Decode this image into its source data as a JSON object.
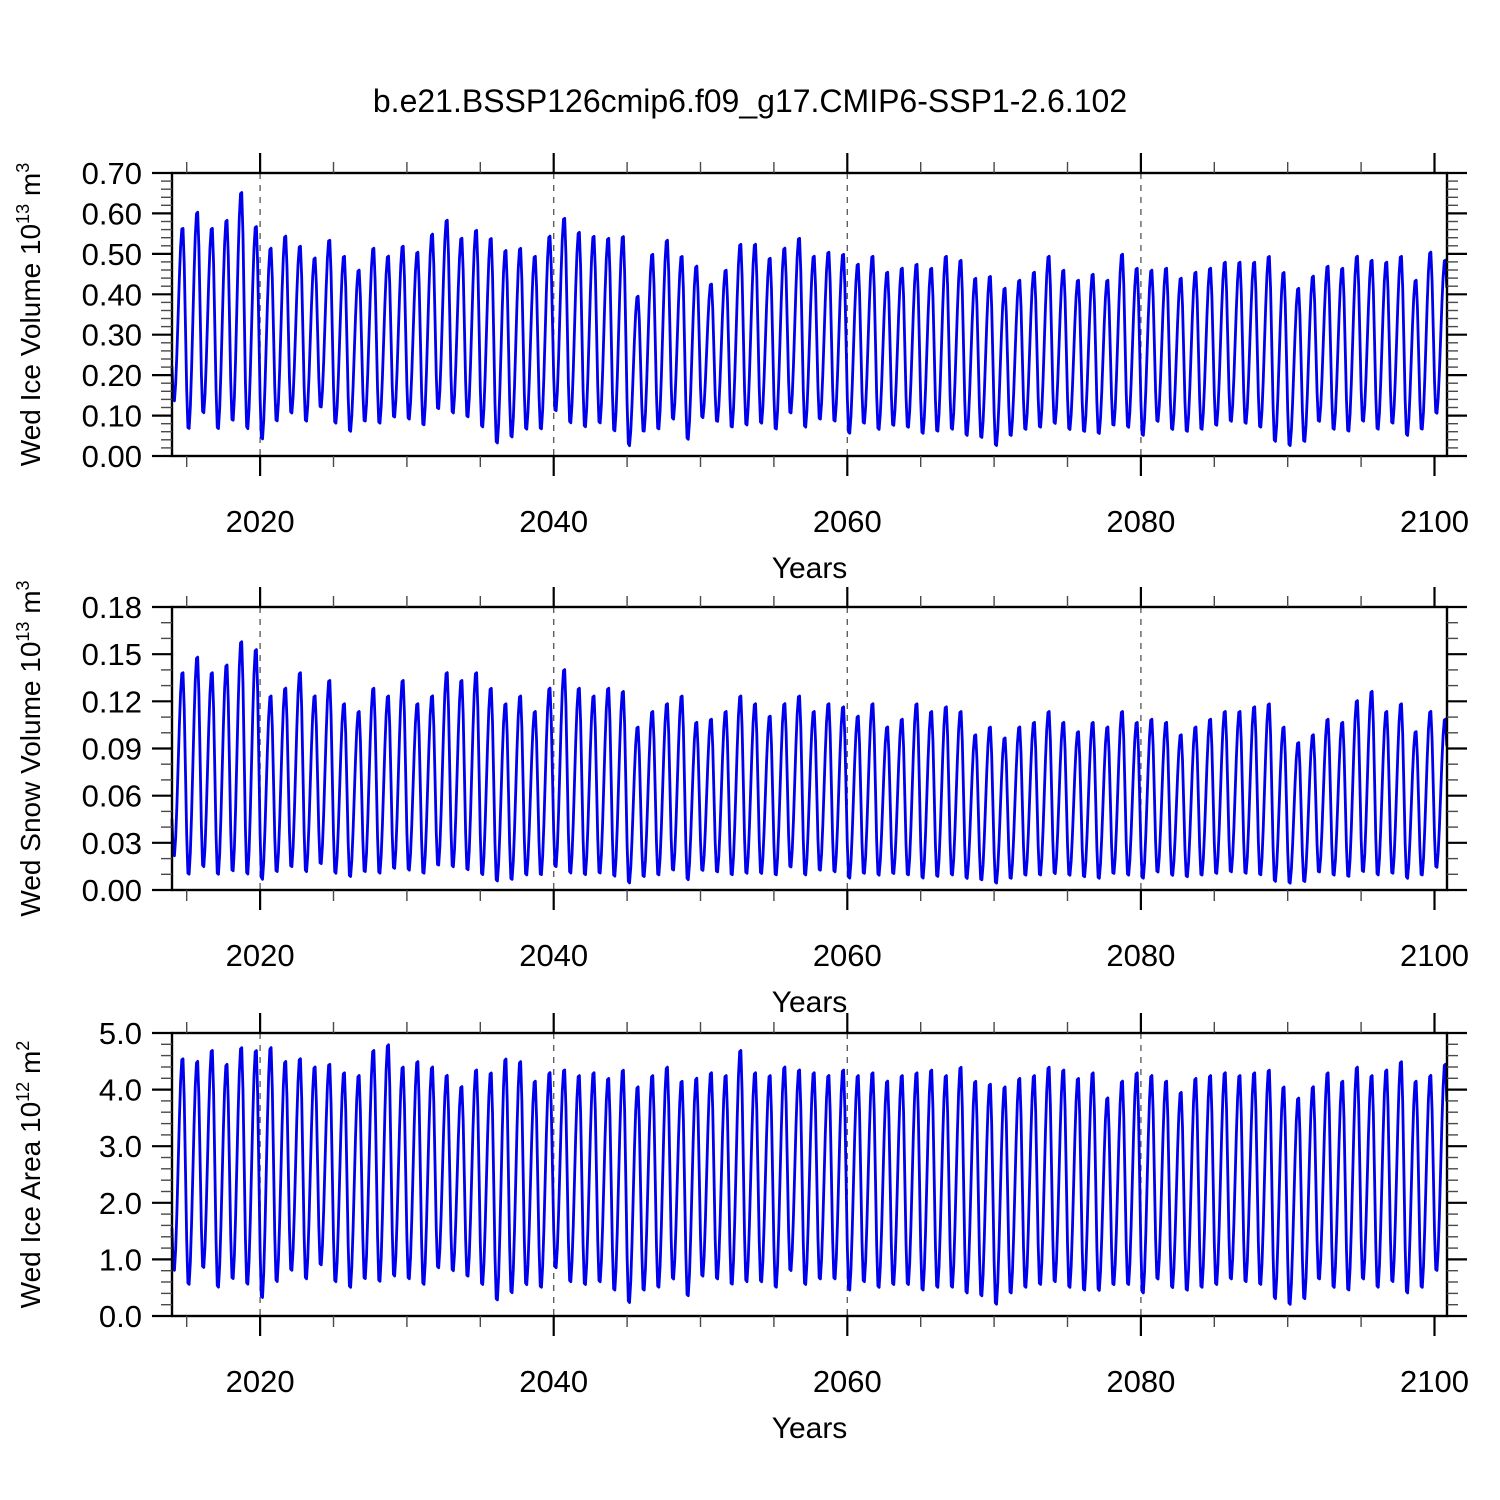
{
  "title": "b.e21.BSSP126cmip6.f09_g17.CMIP6-SSP1-2.6.102",
  "line_color": "#0000EE",
  "grid_color": "#606060",
  "chart_data": [
    {
      "type": "line",
      "id": "wed-ice-volume",
      "ylabel_parts": [
        {
          "t": "Wed Ice Volume 10"
        },
        {
          "t": "13",
          "sup": true
        },
        {
          "t": " m"
        },
        {
          "t": "3",
          "sup": true
        }
      ],
      "xlabel": "Years",
      "xlim": [
        2014,
        2100.85
      ],
      "ylim": [
        0.0,
        0.7
      ],
      "xticks": [
        2020,
        2040,
        2060,
        2080,
        2100
      ],
      "xtick_labels": [
        "2020",
        "2040",
        "2060",
        "2080",
        "2100"
      ],
      "xminor_step": 5,
      "gridline_years": [
        2020,
        2040,
        2060,
        2080
      ],
      "yticks": [
        0.0,
        0.1,
        0.2,
        0.3,
        0.4,
        0.5,
        0.6,
        0.7
      ],
      "ytick_labels": [
        "0.00",
        "0.10",
        "0.20",
        "0.30",
        "0.40",
        "0.50",
        "0.60",
        "0.70"
      ],
      "yminor_step": 0.02,
      "start_year": 2014,
      "seasonal": {
        "trough_frac": 0.12,
        "peak_frac": 0.72
      },
      "annual_max": [
        0.57,
        0.61,
        0.57,
        0.59,
        0.66,
        0.575,
        0.52,
        0.55,
        0.525,
        0.495,
        0.54,
        0.5,
        0.465,
        0.52,
        0.5,
        0.525,
        0.51,
        0.555,
        0.59,
        0.545,
        0.565,
        0.545,
        0.515,
        0.52,
        0.5,
        0.55,
        0.595,
        0.56,
        0.55,
        0.545,
        0.55,
        0.4,
        0.505,
        0.54,
        0.5,
        0.475,
        0.43,
        0.465,
        0.53,
        0.53,
        0.495,
        0.52,
        0.545,
        0.5,
        0.51,
        0.505,
        0.48,
        0.5,
        0.46,
        0.47,
        0.48,
        0.47,
        0.5,
        0.49,
        0.445,
        0.45,
        0.42,
        0.44,
        0.46,
        0.5,
        0.465,
        0.44,
        0.455,
        0.44,
        0.505,
        0.47,
        0.465,
        0.47,
        0.445,
        0.46,
        0.47,
        0.485,
        0.485,
        0.485,
        0.5,
        0.46,
        0.42,
        0.45,
        0.475,
        0.47,
        0.5,
        0.49,
        0.485,
        0.5,
        0.44,
        0.51,
        0.49
      ],
      "annual_min": [
        0.13,
        0.06,
        0.1,
        0.06,
        0.08,
        0.06,
        0.035,
        0.08,
        0.1,
        0.08,
        0.115,
        0.075,
        0.055,
        0.08,
        0.075,
        0.09,
        0.085,
        0.07,
        0.11,
        0.1,
        0.09,
        0.065,
        0.025,
        0.04,
        0.06,
        0.06,
        0.105,
        0.075,
        0.065,
        0.075,
        0.055,
        0.02,
        0.055,
        0.06,
        0.085,
        0.035,
        0.09,
        0.08,
        0.065,
        0.07,
        0.075,
        0.06,
        0.1,
        0.065,
        0.085,
        0.08,
        0.05,
        0.075,
        0.06,
        0.07,
        0.065,
        0.05,
        0.055,
        0.06,
        0.045,
        0.04,
        0.02,
        0.045,
        0.06,
        0.065,
        0.075,
        0.06,
        0.055,
        0.05,
        0.07,
        0.065,
        0.045,
        0.08,
        0.06,
        0.055,
        0.06,
        0.07,
        0.08,
        0.075,
        0.065,
        0.03,
        0.02,
        0.03,
        0.08,
        0.06,
        0.055,
        0.08,
        0.06,
        0.075,
        0.045,
        0.06,
        0.1
      ]
    },
    {
      "type": "line",
      "id": "wed-snow-volume",
      "ylabel_parts": [
        {
          "t": "Wed Snow Volume 10"
        },
        {
          "t": "13",
          "sup": true
        },
        {
          "t": " m"
        },
        {
          "t": "3",
          "sup": true
        }
      ],
      "xlabel": "Years",
      "xlim": [
        2014,
        2100.85
      ],
      "ylim": [
        0.0,
        0.18
      ],
      "xticks": [
        2020,
        2040,
        2060,
        2080,
        2100
      ],
      "xtick_labels": [
        "2020",
        "2040",
        "2060",
        "2080",
        "2100"
      ],
      "xminor_step": 5,
      "gridline_years": [
        2020,
        2040,
        2060,
        2080
      ],
      "yticks": [
        0.0,
        0.03,
        0.06,
        0.09,
        0.12,
        0.15,
        0.18
      ],
      "ytick_labels": [
        "0.00",
        "0.03",
        "0.06",
        "0.09",
        "0.12",
        "0.15",
        "0.18"
      ],
      "yminor_step": 0.01,
      "start_year": 2014,
      "seasonal": {
        "trough_frac": 0.12,
        "peak_frac": 0.72
      },
      "annual_max": [
        0.14,
        0.15,
        0.14,
        0.145,
        0.16,
        0.155,
        0.125,
        0.13,
        0.14,
        0.125,
        0.135,
        0.12,
        0.115,
        0.13,
        0.125,
        0.135,
        0.12,
        0.125,
        0.14,
        0.135,
        0.14,
        0.13,
        0.12,
        0.125,
        0.115,
        0.13,
        0.142,
        0.13,
        0.125,
        0.13,
        0.128,
        0.105,
        0.115,
        0.12,
        0.125,
        0.108,
        0.11,
        0.115,
        0.125,
        0.12,
        0.112,
        0.12,
        0.125,
        0.115,
        0.12,
        0.118,
        0.112,
        0.12,
        0.105,
        0.11,
        0.12,
        0.115,
        0.118,
        0.115,
        0.1,
        0.105,
        0.098,
        0.105,
        0.108,
        0.115,
        0.108,
        0.102,
        0.108,
        0.105,
        0.115,
        0.108,
        0.11,
        0.108,
        0.1,
        0.105,
        0.11,
        0.115,
        0.115,
        0.118,
        0.12,
        0.105,
        0.095,
        0.1,
        0.11,
        0.108,
        0.122,
        0.128,
        0.115,
        0.12,
        0.102,
        0.115,
        0.11
      ],
      "annual_min": [
        0.02,
        0.008,
        0.013,
        0.008,
        0.01,
        0.008,
        0.005,
        0.01,
        0.013,
        0.01,
        0.015,
        0.009,
        0.007,
        0.01,
        0.009,
        0.012,
        0.011,
        0.009,
        0.014,
        0.013,
        0.011,
        0.008,
        0.004,
        0.005,
        0.008,
        0.008,
        0.013,
        0.009,
        0.008,
        0.009,
        0.007,
        0.003,
        0.007,
        0.008,
        0.011,
        0.005,
        0.011,
        0.01,
        0.008,
        0.009,
        0.009,
        0.008,
        0.013,
        0.008,
        0.011,
        0.01,
        0.006,
        0.009,
        0.008,
        0.009,
        0.008,
        0.006,
        0.007,
        0.008,
        0.006,
        0.005,
        0.003,
        0.006,
        0.008,
        0.008,
        0.009,
        0.008,
        0.007,
        0.006,
        0.009,
        0.008,
        0.006,
        0.01,
        0.008,
        0.007,
        0.008,
        0.009,
        0.01,
        0.009,
        0.008,
        0.004,
        0.003,
        0.004,
        0.01,
        0.008,
        0.007,
        0.01,
        0.008,
        0.009,
        0.006,
        0.008,
        0.013
      ]
    },
    {
      "type": "line",
      "id": "wed-ice-area",
      "ylabel_parts": [
        {
          "t": "Wed Ice Area 10"
        },
        {
          "t": "12",
          "sup": true
        },
        {
          "t": " m"
        },
        {
          "t": "2",
          "sup": true
        }
      ],
      "xlabel": "Years",
      "xlim": [
        2014,
        2100.85
      ],
      "ylim": [
        0.0,
        5.0
      ],
      "xticks": [
        2020,
        2040,
        2060,
        2080,
        2100
      ],
      "xtick_labels": [
        "2020",
        "2040",
        "2060",
        "2080",
        "2100"
      ],
      "xminor_step": 5,
      "gridline_years": [
        2020,
        2040,
        2060,
        2080
      ],
      "yticks": [
        0.0,
        1.0,
        2.0,
        3.0,
        4.0,
        5.0
      ],
      "ytick_labels": [
        "0.0",
        "1.0",
        "2.0",
        "3.0",
        "4.0",
        "5.0"
      ],
      "yminor_step": 0.2,
      "start_year": 2014,
      "seasonal": {
        "trough_frac": 0.12,
        "peak_frac": 0.72
      },
      "annual_max": [
        4.6,
        4.55,
        4.75,
        4.5,
        4.8,
        4.75,
        4.8,
        4.55,
        4.6,
        4.45,
        4.5,
        4.35,
        4.3,
        4.75,
        4.85,
        4.45,
        4.55,
        4.45,
        4.3,
        4.1,
        4.4,
        4.35,
        4.6,
        4.55,
        4.2,
        4.35,
        4.4,
        4.3,
        4.35,
        4.25,
        4.4,
        4.1,
        4.3,
        4.45,
        4.2,
        4.25,
        4.35,
        4.3,
        4.75,
        4.35,
        4.3,
        4.45,
        4.4,
        4.35,
        4.3,
        4.4,
        4.3,
        4.35,
        4.2,
        4.3,
        4.35,
        4.4,
        4.3,
        4.45,
        4.2,
        4.15,
        4.1,
        4.25,
        4.3,
        4.45,
        4.4,
        4.25,
        4.35,
        3.9,
        4.2,
        4.35,
        4.3,
        4.2,
        4.0,
        4.25,
        4.3,
        4.35,
        4.3,
        4.35,
        4.4,
        4.1,
        3.9,
        4.1,
        4.35,
        4.2,
        4.45,
        4.3,
        4.4,
        4.55,
        4.2,
        4.3,
        4.5
      ],
      "annual_min": [
        0.75,
        0.5,
        0.8,
        0.45,
        0.6,
        0.5,
        0.26,
        0.55,
        0.75,
        0.6,
        0.85,
        0.55,
        0.45,
        0.6,
        0.55,
        0.65,
        0.6,
        0.5,
        0.8,
        0.75,
        0.65,
        0.5,
        0.22,
        0.35,
        0.5,
        0.45,
        0.8,
        0.55,
        0.5,
        0.55,
        0.4,
        0.18,
        0.4,
        0.45,
        0.6,
        0.3,
        0.65,
        0.6,
        0.5,
        0.55,
        0.55,
        0.45,
        0.75,
        0.5,
        0.6,
        0.6,
        0.4,
        0.55,
        0.45,
        0.5,
        0.5,
        0.4,
        0.45,
        0.45,
        0.35,
        0.3,
        0.15,
        0.35,
        0.45,
        0.5,
        0.55,
        0.45,
        0.4,
        0.4,
        0.5,
        0.5,
        0.35,
        0.6,
        0.45,
        0.4,
        0.45,
        0.5,
        0.6,
        0.55,
        0.5,
        0.25,
        0.15,
        0.25,
        0.6,
        0.45,
        0.4,
        0.6,
        0.45,
        0.55,
        0.35,
        0.45,
        0.75
      ]
    }
  ]
}
